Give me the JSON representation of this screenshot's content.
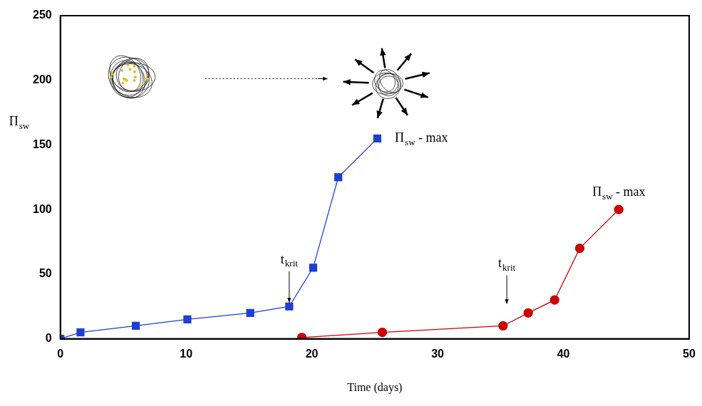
{
  "chart_data": {
    "type": "line",
    "xlabel": "Time (days)",
    "ylabel": {
      "text": "Π",
      "subscript": "sw"
    },
    "xlim": [
      0,
      50
    ],
    "xticks": [
      0,
      10,
      20,
      30,
      40,
      50
    ],
    "ylim": [
      0,
      250
    ],
    "yticks": [
      0,
      50,
      100,
      150,
      200,
      250
    ],
    "grid": false,
    "series": [
      {
        "color": "#1f3fd0",
        "marker": "square",
        "line_style": "solid",
        "x": [
          0,
          1.6,
          6.0,
          10.1,
          15.1,
          18.2,
          20.1,
          22.1,
          25.2
        ],
        "values": [
          0,
          5,
          10,
          15,
          20,
          25,
          55,
          125,
          155
        ]
      },
      {
        "color": "#cc0000",
        "marker": "circle",
        "line_style": "solid",
        "x": [
          19.2,
          25.6,
          35.2,
          37.2,
          39.3,
          41.3,
          44.4
        ],
        "values": [
          1,
          5,
          10,
          20,
          30,
          70,
          100
        ]
      }
    ],
    "annotations": [
      {
        "text": "t",
        "subscript": "krit",
        "x": 18.2,
        "y": 61,
        "arrow_y": 28
      },
      {
        "text": "Π",
        "subscript": "sw",
        "suffix": " - max",
        "x": 26.6,
        "y": 155
      },
      {
        "text": "t",
        "subscript": "krit",
        "x": 35.5,
        "y": 58,
        "arrow_y": 27
      },
      {
        "text": "Π",
        "subscript": "sw",
        "suffix": " - max",
        "x": 42.3,
        "y": 113
      }
    ]
  }
}
